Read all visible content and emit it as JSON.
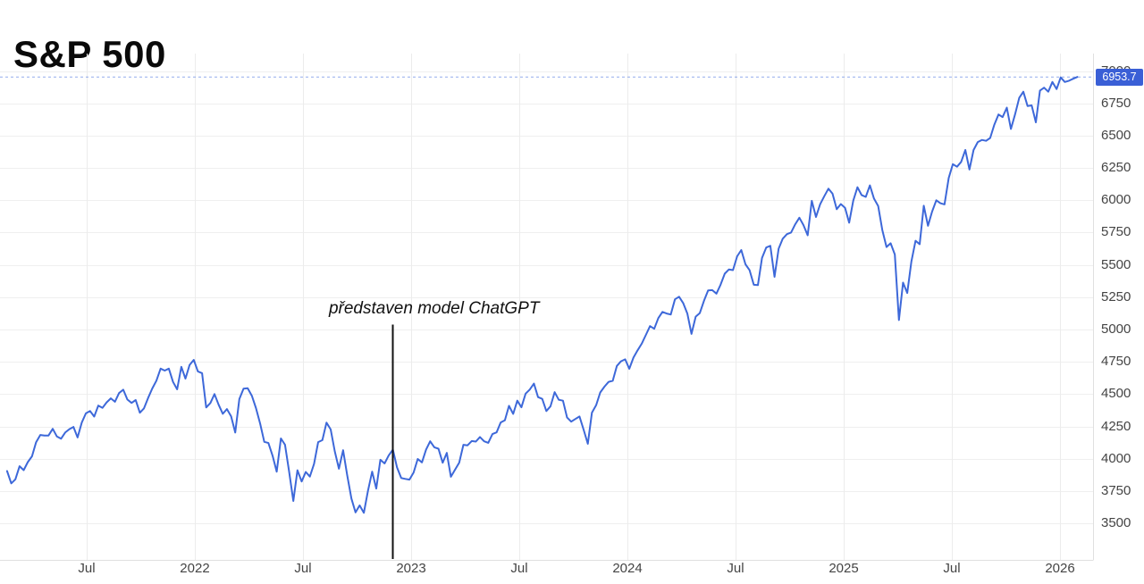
{
  "title": "S&P 500",
  "colors": {
    "series_line": "#3d68d9",
    "badge_background": "#3a5fd6",
    "badge_text": "#ffffff",
    "gridline": "#ececec",
    "axis_border": "#e0e0e0",
    "tick_text": "#444444",
    "annotation_line": "#111111",
    "title_text": "#0a0a0a"
  },
  "chart_data": {
    "type": "line",
    "title": "S&P 500",
    "last_price_label": "6953.7",
    "last_price": 6953.7,
    "annotation": {
      "text": "představen model ChatGPT",
      "t_decimal_year": 2022.912
    },
    "x_start_decimal_year": 2021.132,
    "x_step_decimal_year": 0.019178,
    "xlim": [
      2021.0992,
      2026.1528
    ],
    "ylim": [
      3215.4,
      7134.7
    ],
    "grid": true,
    "legend": "none",
    "y_ticks": [
      7000,
      6750,
      6500,
      6250,
      6000,
      5750,
      5500,
      5250,
      5000,
      4750,
      4500,
      4250,
      4000,
      3750,
      3500
    ],
    "x_ticks": [
      {
        "t": 2021.5,
        "label": "Jul"
      },
      {
        "t": 2022.0,
        "label": "2022"
      },
      {
        "t": 2022.5,
        "label": "Jul"
      },
      {
        "t": 2023.0,
        "label": "2023"
      },
      {
        "t": 2023.5,
        "label": "Jul"
      },
      {
        "t": 2024.0,
        "label": "2024"
      },
      {
        "t": 2024.5,
        "label": "Jul"
      },
      {
        "t": 2025.0,
        "label": "2025"
      },
      {
        "t": 2025.5,
        "label": "Jul"
      },
      {
        "t": 2026.0,
        "label": "2026"
      }
    ],
    "values": [
      3906,
      3811,
      3842,
      3943,
      3913,
      3975,
      4020,
      4129,
      4185,
      4180,
      4181,
      4233,
      4174,
      4156,
      4204,
      4230,
      4247,
      4166,
      4281,
      4352,
      4370,
      4327,
      4412,
      4395,
      4437,
      4468,
      4442,
      4509,
      4535,
      4459,
      4433,
      4455,
      4357,
      4391,
      4471,
      4545,
      4605,
      4698,
      4683,
      4698,
      4595,
      4538,
      4712,
      4621,
      4726,
      4766,
      4677,
      4663,
      4398,
      4432,
      4501,
      4419,
      4349,
      4385,
      4329,
      4204,
      4463,
      4543,
      4546,
      4488,
      4393,
      4272,
      4132,
      4123,
      4024,
      3901,
      4158,
      4109,
      3901,
      3675,
      3912,
      3825,
      3899,
      3863,
      3962,
      4130,
      4145,
      4280,
      4228,
      4058,
      3924,
      4067,
      3873,
      3693,
      3586,
      3640,
      3583,
      3753,
      3901,
      3771,
      3993,
      3965,
      4026,
      4072,
      3934,
      3852,
      3845,
      3840,
      3895,
      3999,
      3973,
      4071,
      4136,
      4090,
      4079,
      3970,
      4046,
      3862,
      3917,
      3971,
      4109,
      4105,
      4138,
      4134,
      4169,
      4136,
      4124,
      4192,
      4205,
      4282,
      4299,
      4410,
      4348,
      4450,
      4399,
      4505,
      4536,
      4582,
      4478,
      4464,
      4370,
      4406,
      4516,
      4457,
      4450,
      4320,
      4288,
      4309,
      4328,
      4224,
      4117,
      4358,
      4415,
      4514,
      4559,
      4595,
      4604,
      4719,
      4755,
      4770,
      4697,
      4784,
      4840,
      4891,
      4959,
      5027,
      5006,
      5089,
      5137,
      5124,
      5117,
      5234,
      5254,
      5204,
      5123,
      4967,
      5100,
      5128,
      5223,
      5303,
      5305,
      5278,
      5347,
      5432,
      5465,
      5460,
      5567,
      5615,
      5505,
      5459,
      5347,
      5344,
      5554,
      5635,
      5648,
      5408,
      5626,
      5703,
      5738,
      5751,
      5815,
      5865,
      5808,
      5729,
      5996,
      5871,
      5969,
      6032,
      6090,
      6051,
      5931,
      5971,
      5942,
      5827,
      5997,
      6101,
      6041,
      6026,
      6115,
      6013,
      5955,
      5770,
      5639,
      5668,
      5581,
      5074,
      5363,
      5283,
      5525,
      5687,
      5660,
      5958,
      5803,
      5912,
      6000,
      5977,
      5968,
      6173,
      6279,
      6260,
      6297,
      6389,
      6238,
      6389,
      6450,
      6467,
      6460,
      6482,
      6584,
      6664,
      6644,
      6716,
      6552,
      6664,
      6792,
      6840,
      6729,
      6734,
      6603,
      6849,
      6871,
      6840,
      6915,
      6860,
      6950,
      6915,
      6925,
      6940,
      6953.7
    ]
  }
}
